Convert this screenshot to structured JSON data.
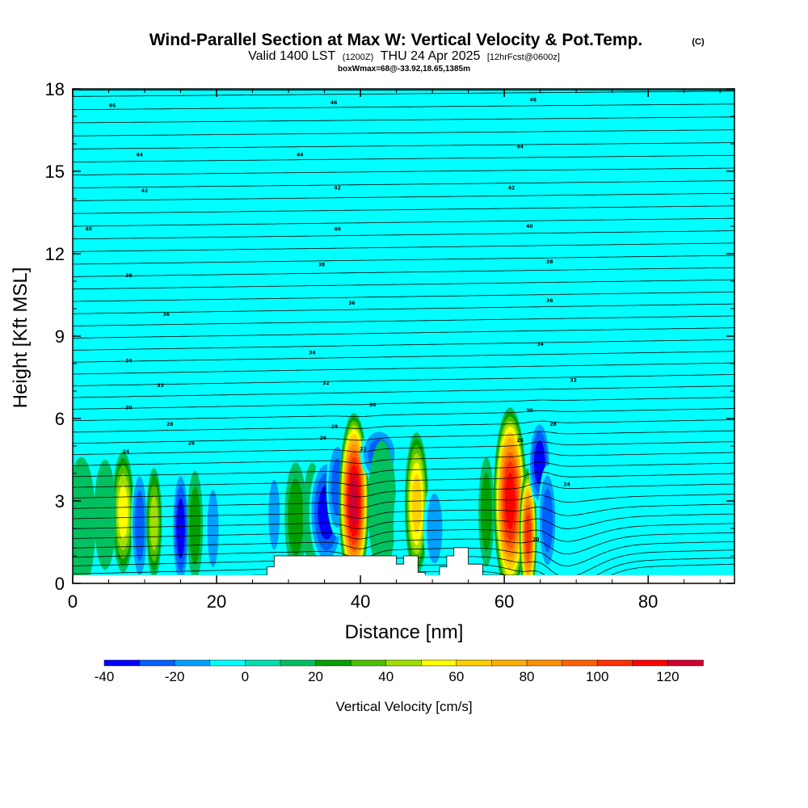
{
  "title": {
    "main": "Wind-Parallel Section at Max W: Vertical Velocity & Pot.Temp.",
    "copyright": "(C)",
    "valid_prefix": "Valid 1400 LST",
    "valid_utc": "(1200Z)",
    "valid_date": "THU 24 Apr 2025",
    "forecast": "[12hrFcst@0600z]",
    "box_info": "boxWmax=68@-33.92,18.65,1385m"
  },
  "chart_data": {
    "type": "heatmap",
    "xlabel": "Distance [nm]",
    "ylabel": "Height [Kft MSL]",
    "xlim": [
      0,
      92
    ],
    "ylim": [
      0,
      18
    ],
    "x_ticks": [
      0,
      20,
      40,
      60,
      80
    ],
    "y_ticks": [
      0,
      3,
      6,
      9,
      12,
      15,
      18
    ],
    "background_value": 0,
    "colorbar": {
      "title": "Vertical Velocity [cm/s]",
      "range": [
        -40,
        130
      ],
      "step": 10,
      "tick_values": [
        -40,
        -20,
        0,
        20,
        40,
        60,
        80,
        100,
        120
      ],
      "colors": [
        "#0000ff",
        "#0060ff",
        "#00a0ff",
        "#00ffff",
        "#00e0b0",
        "#00c060",
        "#00a000",
        "#50c000",
        "#a0e000",
        "#ffff00",
        "#ffd000",
        "#ffb000",
        "#ff9000",
        "#ff6000",
        "#ff3000",
        "#ff0000",
        "#d00030"
      ]
    },
    "vertical_velocity_cells": [
      {
        "x": 7.0,
        "z": 2.6,
        "sx": 0.7,
        "sz": 1.1,
        "w": 52
      },
      {
        "x": 9.3,
        "z": 2.1,
        "sx": 0.55,
        "sz": 1.1,
        "w": -28
      },
      {
        "x": 11.3,
        "z": 2.2,
        "sx": 0.5,
        "sz": 1.0,
        "w": 45
      },
      {
        "x": 15.0,
        "z": 2.0,
        "sx": 0.55,
        "sz": 1.1,
        "w": -36
      },
      {
        "x": 17.0,
        "z": 2.1,
        "sx": 0.5,
        "sz": 1.0,
        "w": 22
      },
      {
        "x": 19.5,
        "z": 2.0,
        "sx": 0.5,
        "sz": 1.0,
        "w": -18
      },
      {
        "x": 24.0,
        "z": 2.0,
        "sx": 1.6,
        "sz": 1.0,
        "w": 9
      },
      {
        "x": 28.0,
        "z": 2.5,
        "sx": 0.5,
        "sz": 0.9,
        "w": -12
      },
      {
        "x": 31.0,
        "z": 2.4,
        "sx": 0.7,
        "sz": 1.0,
        "w": 22
      },
      {
        "x": 33.3,
        "z": 2.4,
        "sx": 0.6,
        "sz": 1.0,
        "w": 18
      },
      {
        "x": 35.3,
        "z": 2.6,
        "sx": 1.1,
        "sz": 1.0,
        "w": -33
      },
      {
        "x": 36.8,
        "z": 3.5,
        "sx": 0.7,
        "sz": 0.9,
        "w": -22
      },
      {
        "x": 39.1,
        "z": 3.0,
        "sx": 0.95,
        "sz": 1.6,
        "w": 122
      },
      {
        "x": 42.6,
        "z": 4.7,
        "sx": 1.2,
        "sz": 0.5,
        "w": -28
      },
      {
        "x": 43.0,
        "z": 2.8,
        "sx": 0.9,
        "sz": 1.2,
        "w": 14
      },
      {
        "x": 45.7,
        "z": 2.0,
        "sx": 0.5,
        "sz": 0.9,
        "w": -10
      },
      {
        "x": 47.8,
        "z": 2.9,
        "sx": 0.75,
        "sz": 1.3,
        "w": 68
      },
      {
        "x": 50.3,
        "z": 2.0,
        "sx": 0.7,
        "sz": 0.9,
        "w": -12
      },
      {
        "x": 52.0,
        "z": 2.6,
        "sx": 0.8,
        "sz": 0.9,
        "w": 9
      },
      {
        "x": 55.0,
        "z": 3.0,
        "sx": 1.2,
        "sz": 1.1,
        "w": -10
      },
      {
        "x": 57.5,
        "z": 2.6,
        "sx": 0.5,
        "sz": 1.0,
        "w": 20
      },
      {
        "x": 60.8,
        "z": 3.0,
        "sx": 1.05,
        "sz": 1.7,
        "w": 112
      },
      {
        "x": 63.3,
        "z": 1.8,
        "sx": 0.55,
        "sz": 1.2,
        "w": 100
      },
      {
        "x": 64.9,
        "z": 4.4,
        "sx": 0.7,
        "sz": 0.8,
        "w": -40
      },
      {
        "x": 66.0,
        "z": 2.3,
        "sx": 0.6,
        "sz": 1.0,
        "w": -22
      },
      {
        "x": 88.0,
        "z": 3.0,
        "sx": 0.6,
        "sz": 0.7,
        "w": 9
      },
      {
        "x": 1.2,
        "z": 2.2,
        "sx": 0.9,
        "sz": 1.2,
        "w": 18
      },
      {
        "x": 4.5,
        "z": 2.5,
        "sx": 0.7,
        "sz": 1.0,
        "w": 12
      },
      {
        "x": 66.5,
        "z": 8.0,
        "sx": 4.0,
        "sz": 1.5,
        "w": 8
      },
      {
        "x": 62.0,
        "z": 16.0,
        "sx": 1.2,
        "sz": 3.0,
        "w": 8
      },
      {
        "x": 81.0,
        "z": 15.0,
        "sx": 2.2,
        "sz": 3.5,
        "w": 8
      },
      {
        "x": 14.0,
        "z": 15.5,
        "sx": 2.5,
        "sz": 2.5,
        "w": 8
      }
    ],
    "terrain_profile": [
      [
        0,
        0
      ],
      [
        25,
        0
      ],
      [
        25,
        0.3
      ],
      [
        27,
        0.3
      ],
      [
        27,
        0.6
      ],
      [
        28,
        0.6
      ],
      [
        28,
        1.0
      ],
      [
        45,
        1.0
      ],
      [
        45,
        0.7
      ],
      [
        46,
        0.7
      ],
      [
        46,
        1.0
      ],
      [
        48,
        1.0
      ],
      [
        48,
        0.4
      ],
      [
        49,
        0.4
      ],
      [
        49,
        0.2
      ],
      [
        51,
        0.2
      ],
      [
        51,
        0.6
      ],
      [
        52,
        0.6
      ],
      [
        52,
        1.0
      ],
      [
        53,
        1.0
      ],
      [
        53,
        1.3
      ],
      [
        55,
        1.3
      ],
      [
        55,
        0.7
      ],
      [
        57,
        0.7
      ],
      [
        57,
        0.3
      ],
      [
        62,
        0.3
      ],
      [
        62,
        0
      ],
      [
        92,
        0
      ]
    ],
    "isentropes": {
      "count": 44,
      "labels": [
        {
          "x": 5.5,
          "z": 17.4,
          "text": "46"
        },
        {
          "x": 36.3,
          "z": 17.5,
          "text": "46"
        },
        {
          "x": 64.0,
          "z": 17.6,
          "text": "46"
        },
        {
          "x": 9.3,
          "z": 15.6,
          "text": "44"
        },
        {
          "x": 31.6,
          "z": 15.6,
          "text": "44"
        },
        {
          "x": 62.2,
          "z": 15.9,
          "text": "44"
        },
        {
          "x": 10.0,
          "z": 14.3,
          "text": "42"
        },
        {
          "x": 36.8,
          "z": 14.4,
          "text": "42"
        },
        {
          "x": 61.0,
          "z": 14.4,
          "text": "42"
        },
        {
          "x": 2.2,
          "z": 12.9,
          "text": "40"
        },
        {
          "x": 36.8,
          "z": 12.9,
          "text": "40"
        },
        {
          "x": 63.5,
          "z": 13.0,
          "text": "40"
        },
        {
          "x": 7.8,
          "z": 11.2,
          "text": "38"
        },
        {
          "x": 34.6,
          "z": 11.6,
          "text": "38"
        },
        {
          "x": 66.3,
          "z": 11.7,
          "text": "38"
        },
        {
          "x": 13.0,
          "z": 9.8,
          "text": "36"
        },
        {
          "x": 38.8,
          "z": 10.2,
          "text": "36"
        },
        {
          "x": 66.3,
          "z": 10.3,
          "text": "36"
        },
        {
          "x": 7.8,
          "z": 8.1,
          "text": "34"
        },
        {
          "x": 33.3,
          "z": 8.4,
          "text": "34"
        },
        {
          "x": 65.0,
          "z": 8.7,
          "text": "34"
        },
        {
          "x": 12.2,
          "z": 7.2,
          "text": "33"
        },
        {
          "x": 35.2,
          "z": 7.3,
          "text": "32"
        },
        {
          "x": 69.6,
          "z": 7.4,
          "text": "32"
        },
        {
          "x": 7.8,
          "z": 6.4,
          "text": "30"
        },
        {
          "x": 41.7,
          "z": 6.5,
          "text": "30"
        },
        {
          "x": 63.5,
          "z": 6.3,
          "text": "30"
        },
        {
          "x": 13.5,
          "z": 5.8,
          "text": "28"
        },
        {
          "x": 36.4,
          "z": 5.7,
          "text": "28"
        },
        {
          "x": 66.8,
          "z": 5.8,
          "text": "28"
        },
        {
          "x": 16.5,
          "z": 5.1,
          "text": "26"
        },
        {
          "x": 34.8,
          "z": 5.3,
          "text": "26"
        },
        {
          "x": 62.2,
          "z": 5.2,
          "text": "26"
        },
        {
          "x": 7.4,
          "z": 4.8,
          "text": "24"
        },
        {
          "x": 40.4,
          "z": 4.9,
          "text": "22"
        },
        {
          "x": 68.7,
          "z": 3.6,
          "text": "24"
        },
        {
          "x": 64.4,
          "z": 1.6,
          "text": "20"
        }
      ]
    }
  }
}
